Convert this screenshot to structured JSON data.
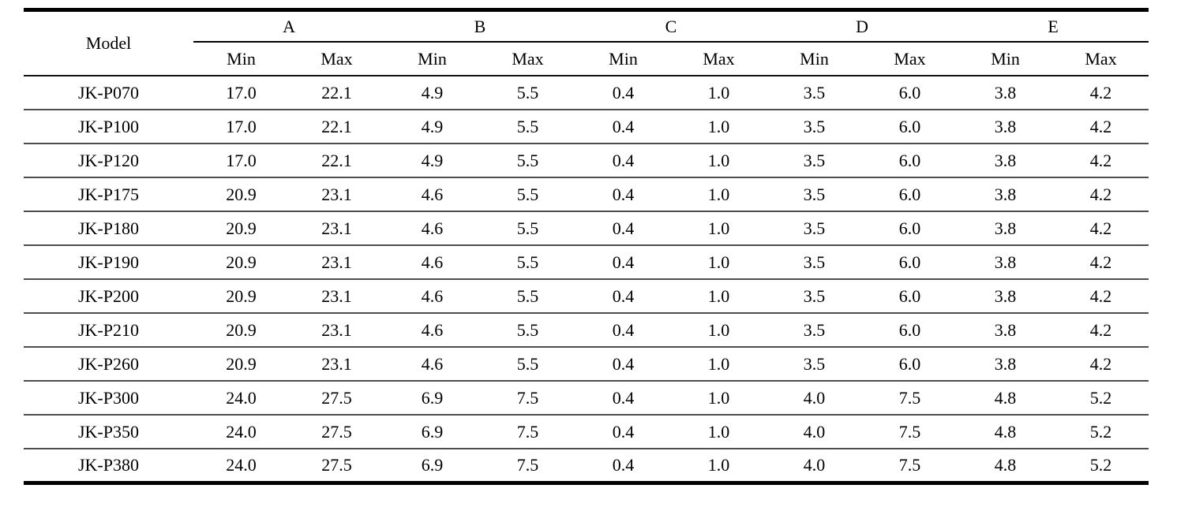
{
  "table": {
    "model_header": "Model",
    "groups": [
      "A",
      "B",
      "C",
      "D",
      "E"
    ],
    "sub_headers": [
      "Min",
      "Max",
      "Min",
      "Max",
      "Min",
      "Max",
      "Min",
      "Max",
      "Min",
      "Max"
    ],
    "rows": [
      {
        "model": "JK-P070",
        "values": [
          "17.0",
          "22.1",
          "4.9",
          "5.5",
          "0.4",
          "1.0",
          "3.5",
          "6.0",
          "3.8",
          "4.2"
        ]
      },
      {
        "model": "JK-P100",
        "values": [
          "17.0",
          "22.1",
          "4.9",
          "5.5",
          "0.4",
          "1.0",
          "3.5",
          "6.0",
          "3.8",
          "4.2"
        ]
      },
      {
        "model": "JK-P120",
        "values": [
          "17.0",
          "22.1",
          "4.9",
          "5.5",
          "0.4",
          "1.0",
          "3.5",
          "6.0",
          "3.8",
          "4.2"
        ]
      },
      {
        "model": "JK-P175",
        "values": [
          "20.9",
          "23.1",
          "4.6",
          "5.5",
          "0.4",
          "1.0",
          "3.5",
          "6.0",
          "3.8",
          "4.2"
        ]
      },
      {
        "model": "JK-P180",
        "values": [
          "20.9",
          "23.1",
          "4.6",
          "5.5",
          "0.4",
          "1.0",
          "3.5",
          "6.0",
          "3.8",
          "4.2"
        ]
      },
      {
        "model": "JK-P190",
        "values": [
          "20.9",
          "23.1",
          "4.6",
          "5.5",
          "0.4",
          "1.0",
          "3.5",
          "6.0",
          "3.8",
          "4.2"
        ]
      },
      {
        "model": "JK-P200",
        "values": [
          "20.9",
          "23.1",
          "4.6",
          "5.5",
          "0.4",
          "1.0",
          "3.5",
          "6.0",
          "3.8",
          "4.2"
        ]
      },
      {
        "model": "JK-P210",
        "values": [
          "20.9",
          "23.1",
          "4.6",
          "5.5",
          "0.4",
          "1.0",
          "3.5",
          "6.0",
          "3.8",
          "4.2"
        ]
      },
      {
        "model": "JK-P260",
        "values": [
          "20.9",
          "23.1",
          "4.6",
          "5.5",
          "0.4",
          "1.0",
          "3.5",
          "6.0",
          "3.8",
          "4.2"
        ]
      },
      {
        "model": "JK-P300",
        "values": [
          "24.0",
          "27.5",
          "6.9",
          "7.5",
          "0.4",
          "1.0",
          "4.0",
          "7.5",
          "4.8",
          "5.2"
        ]
      },
      {
        "model": "JK-P350",
        "values": [
          "24.0",
          "27.5",
          "6.9",
          "7.5",
          "0.4",
          "1.0",
          "4.0",
          "7.5",
          "4.8",
          "5.2"
        ]
      },
      {
        "model": "JK-P380",
        "values": [
          "24.0",
          "27.5",
          "6.9",
          "7.5",
          "0.4",
          "1.0",
          "4.0",
          "7.5",
          "4.8",
          "5.2"
        ]
      }
    ],
    "colors": {
      "text": "#000000",
      "heavy_rule": "#000000",
      "light_rule": "#4d4d4d",
      "background": "#ffffff"
    }
  }
}
